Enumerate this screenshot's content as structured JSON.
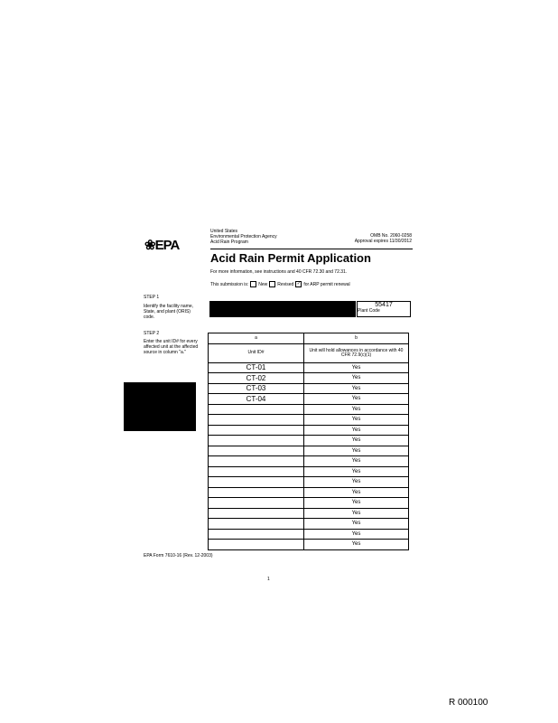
{
  "header": {
    "logo": "EPA",
    "agency_lines": [
      "United States",
      "Environmental Protection Agency",
      "Acid Rain Program"
    ],
    "omb": "OMB No. 2060-0258",
    "approval": "Approval expires 11/30/2012",
    "title": "Acid Rain Permit Application",
    "instructions": "For more information, see instructions and 40 CFR 72.30 and 72.31.",
    "submission_label": "This submission is:",
    "options": [
      {
        "label": "New",
        "checked": false
      },
      {
        "label": "Revised",
        "checked": false
      },
      {
        "label": "for ARP permit renewal",
        "checked": true
      }
    ]
  },
  "step1": {
    "label": "STEP 1",
    "text": "Identify the facility name, State, and plant (ORIS) code.",
    "plant_code": "55417",
    "plant_code_label": "Plant Code"
  },
  "step2": {
    "label": "STEP 2",
    "text": "Enter the unit ID# for every affected unit at the affected source in column \"a.\""
  },
  "table": {
    "col_letters": [
      "a",
      "b"
    ],
    "headers": [
      "Unit ID#",
      "Unit will hold allowances in accordance with 40 CFR 72.9(c)(1)"
    ],
    "rows": [
      [
        "CT-01",
        "Yes"
      ],
      [
        "CT-02",
        "Yes"
      ],
      [
        "CT-03",
        "Yes"
      ],
      [
        "CT-04",
        "Yes"
      ],
      [
        "",
        "Yes"
      ],
      [
        "",
        "Yes"
      ],
      [
        "",
        "Yes"
      ],
      [
        "",
        "Yes"
      ],
      [
        "",
        "Yes"
      ],
      [
        "",
        "Yes"
      ],
      [
        "",
        "Yes"
      ],
      [
        "",
        "Yes"
      ],
      [
        "",
        "Yes"
      ],
      [
        "",
        "Yes"
      ],
      [
        "",
        "Yes"
      ],
      [
        "",
        "Yes"
      ],
      [
        "",
        "Yes"
      ],
      [
        "",
        "Yes"
      ]
    ]
  },
  "footer": {
    "form_id": "EPA Form 7610-16 (Rev. 12-2003)",
    "page": "1",
    "bates": "R 000100"
  }
}
